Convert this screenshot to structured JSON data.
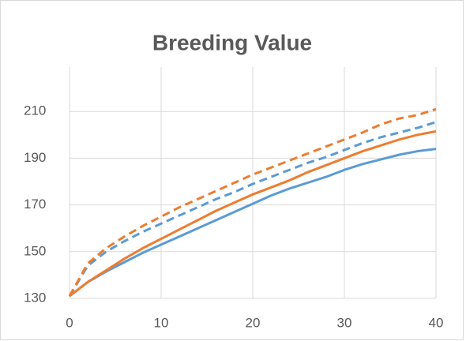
{
  "chart_data": {
    "type": "line",
    "title": "Breeding Value",
    "x": [
      0,
      2,
      4,
      6,
      8,
      10,
      12,
      14,
      16,
      18,
      20,
      22,
      24,
      26,
      28,
      30,
      32,
      34,
      36,
      38,
      40
    ],
    "series": [
      {
        "color": "#5b9bd5",
        "dash": false,
        "values": [
          131,
          137,
          141.5,
          145.5,
          149.5,
          153,
          156.5,
          160,
          163.5,
          167,
          170.5,
          174,
          177,
          179.5,
          182,
          185,
          187.5,
          189.5,
          191.5,
          193,
          194
        ]
      },
      {
        "color": "#ed7d31",
        "dash": false,
        "values": [
          131,
          137,
          142,
          147,
          151.5,
          155.5,
          159.5,
          163.5,
          167.5,
          171,
          174.5,
          177.5,
          180.5,
          184,
          187,
          190,
          193,
          195.5,
          198,
          200,
          201.5
        ]
      },
      {
        "color": "#5b9bd5",
        "dash": true,
        "values": [
          131,
          144,
          150,
          154.5,
          158.5,
          162,
          165.5,
          169,
          172.5,
          175.5,
          179,
          182,
          185,
          188,
          190.5,
          193.5,
          196.5,
          199,
          201,
          203,
          205.5
        ]
      },
      {
        "color": "#ed7d31",
        "dash": true,
        "values": [
          131,
          145,
          151.5,
          156.5,
          161,
          165,
          169,
          172.5,
          176,
          179.5,
          183,
          186,
          189,
          192,
          195,
          198,
          201,
          204.5,
          207,
          208.5,
          211
        ]
      }
    ],
    "xlim": [
      0,
      40
    ],
    "xticks": [
      0,
      10,
      20,
      30,
      40
    ],
    "ylim": [
      130,
      229
    ],
    "yticks": [
      130,
      150,
      170,
      190,
      210
    ],
    "grid": true
  }
}
